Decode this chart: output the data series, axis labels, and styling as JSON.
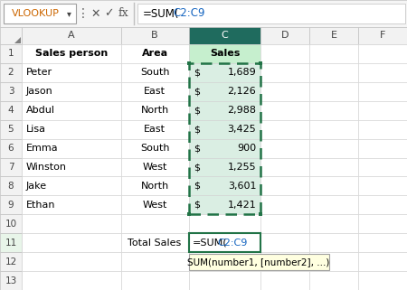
{
  "formula_bar_name": "VLOOKUP",
  "formula_bar_formula": "=SUM(C2:C9",
  "col_headers": [
    "A",
    "B",
    "C",
    "D",
    "E",
    "F"
  ],
  "header_row": [
    "Sales person",
    "Area",
    "Sales",
    "",
    "",
    ""
  ],
  "data_rows": [
    [
      "Peter",
      "South",
      "1,689",
      "",
      "",
      ""
    ],
    [
      "Jason",
      "East",
      "2,126",
      "",
      "",
      ""
    ],
    [
      "Abdul",
      "North",
      "2,988",
      "",
      "",
      ""
    ],
    [
      "Lisa",
      "East",
      "3,425",
      "",
      "",
      ""
    ],
    [
      "Emma",
      "South",
      "900",
      "",
      "",
      ""
    ],
    [
      "Winston",
      "West",
      "1,255",
      "",
      "",
      ""
    ],
    [
      "Jake",
      "North",
      "3,601",
      "",
      "",
      ""
    ],
    [
      "Ethan",
      "West",
      "1,421",
      "",
      "",
      ""
    ]
  ],
  "total_label": "Total Sales",
  "formula_prefix": "=SUM(",
  "formula_range": "C2:C9",
  "tooltip": "SUM(number1, [number2], ...)",
  "bg_color": "#ffffff",
  "grid_color": "#d0d0d0",
  "header_bg": "#f2f2f2",
  "col_c_header_bg": "#1f6b5e",
  "col_c_header_fg": "#ffffff",
  "col_c_data_bg": "#daeee3",
  "col_c_row1_bg": "#c6efce",
  "selection_color": "#217346",
  "formula_range_color": "#1565c0",
  "row11_bg": "#ffffff",
  "tooltip_bg": "#ffffe0",
  "tooltip_border": "#a0a0a0",
  "formula_bar_bg": "#f5f5f5",
  "name_box_bg": "#ffffff",
  "row_header_bg": "#f2f2f2",
  "row11_num_bg": "#e8f5e9"
}
